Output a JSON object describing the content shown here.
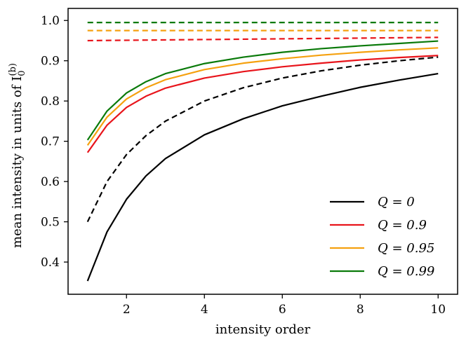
{
  "chart_data": {
    "type": "line",
    "xlabel": "intensity order",
    "ylabel": "mean intensity in units of I",
    "ylabel_sub": "0",
    "ylabel_sup": "(b)",
    "xlim": [
      0.5,
      10.5
    ],
    "ylim": [
      0.32,
      1.03
    ],
    "xticks": [
      2,
      4,
      6,
      8,
      10
    ],
    "yticks": [
      0.4,
      0.5,
      0.6,
      0.7,
      0.8,
      0.9,
      1.0
    ],
    "ytick_labels": [
      "0.4",
      "0.5",
      "0.6",
      "0.7",
      "0.8",
      "0.9",
      "1.0"
    ],
    "grid": false,
    "legend_position": "lower-right",
    "series": [
      {
        "name": "Q = 0",
        "color": "#000000",
        "style": "solid",
        "x": [
          1,
          1.5,
          2,
          2.5,
          3,
          4,
          5,
          6,
          7,
          8,
          9,
          10
        ],
        "y": [
          0.353,
          0.475,
          0.556,
          0.614,
          0.657,
          0.716,
          0.756,
          0.788,
          0.812,
          0.834,
          0.852,
          0.868
        ]
      },
      {
        "name": "",
        "color": "#000000",
        "style": "dashed",
        "x": [
          1,
          1.5,
          2,
          2.5,
          3,
          4,
          5,
          6,
          7,
          8,
          9,
          10
        ],
        "y": [
          0.5,
          0.6,
          0.667,
          0.714,
          0.75,
          0.8,
          0.833,
          0.857,
          0.875,
          0.889,
          0.9,
          0.909
        ]
      },
      {
        "name": "Q = 0.9",
        "color": "#e8141b",
        "style": "solid",
        "x": [
          1,
          1.5,
          2,
          2.5,
          3,
          4,
          5,
          6,
          7,
          8,
          9,
          10
        ],
        "y": [
          0.672,
          0.74,
          0.784,
          0.812,
          0.832,
          0.857,
          0.873,
          0.885,
          0.894,
          0.902,
          0.908,
          0.913
        ]
      },
      {
        "name": "",
        "color": "#e8141b",
        "style": "dashed",
        "x": [
          1,
          10
        ],
        "y": [
          0.95,
          0.958
        ]
      },
      {
        "name": "Q = 0.95",
        "color": "#f5a10f",
        "style": "solid",
        "x": [
          1,
          1.5,
          2,
          2.5,
          3,
          4,
          5,
          6,
          7,
          8,
          9,
          10
        ],
        "y": [
          0.69,
          0.76,
          0.805,
          0.833,
          0.853,
          0.878,
          0.894,
          0.905,
          0.914,
          0.921,
          0.927,
          0.932
        ]
      },
      {
        "name": "",
        "color": "#f5a10f",
        "style": "dashed",
        "x": [
          1,
          10
        ],
        "y": [
          0.975,
          0.975
        ]
      },
      {
        "name": "Q = 0.99",
        "color": "#0a7a0a",
        "style": "solid",
        "x": [
          1,
          1.5,
          2,
          2.5,
          3,
          4,
          5,
          6,
          7,
          8,
          9,
          10
        ],
        "y": [
          0.703,
          0.775,
          0.82,
          0.848,
          0.868,
          0.893,
          0.909,
          0.921,
          0.93,
          0.937,
          0.943,
          0.949
        ]
      },
      {
        "name": "",
        "color": "#0a7a0a",
        "style": "dashed",
        "x": [
          1,
          10
        ],
        "y": [
          0.995,
          0.995
        ]
      }
    ],
    "legend": [
      {
        "label": "Q = 0",
        "color": "#000000"
      },
      {
        "label": "Q = 0.9",
        "color": "#e8141b"
      },
      {
        "label": "Q = 0.95",
        "color": "#f5a10f"
      },
      {
        "label": "Q = 0.99",
        "color": "#0a7a0a"
      }
    ]
  }
}
